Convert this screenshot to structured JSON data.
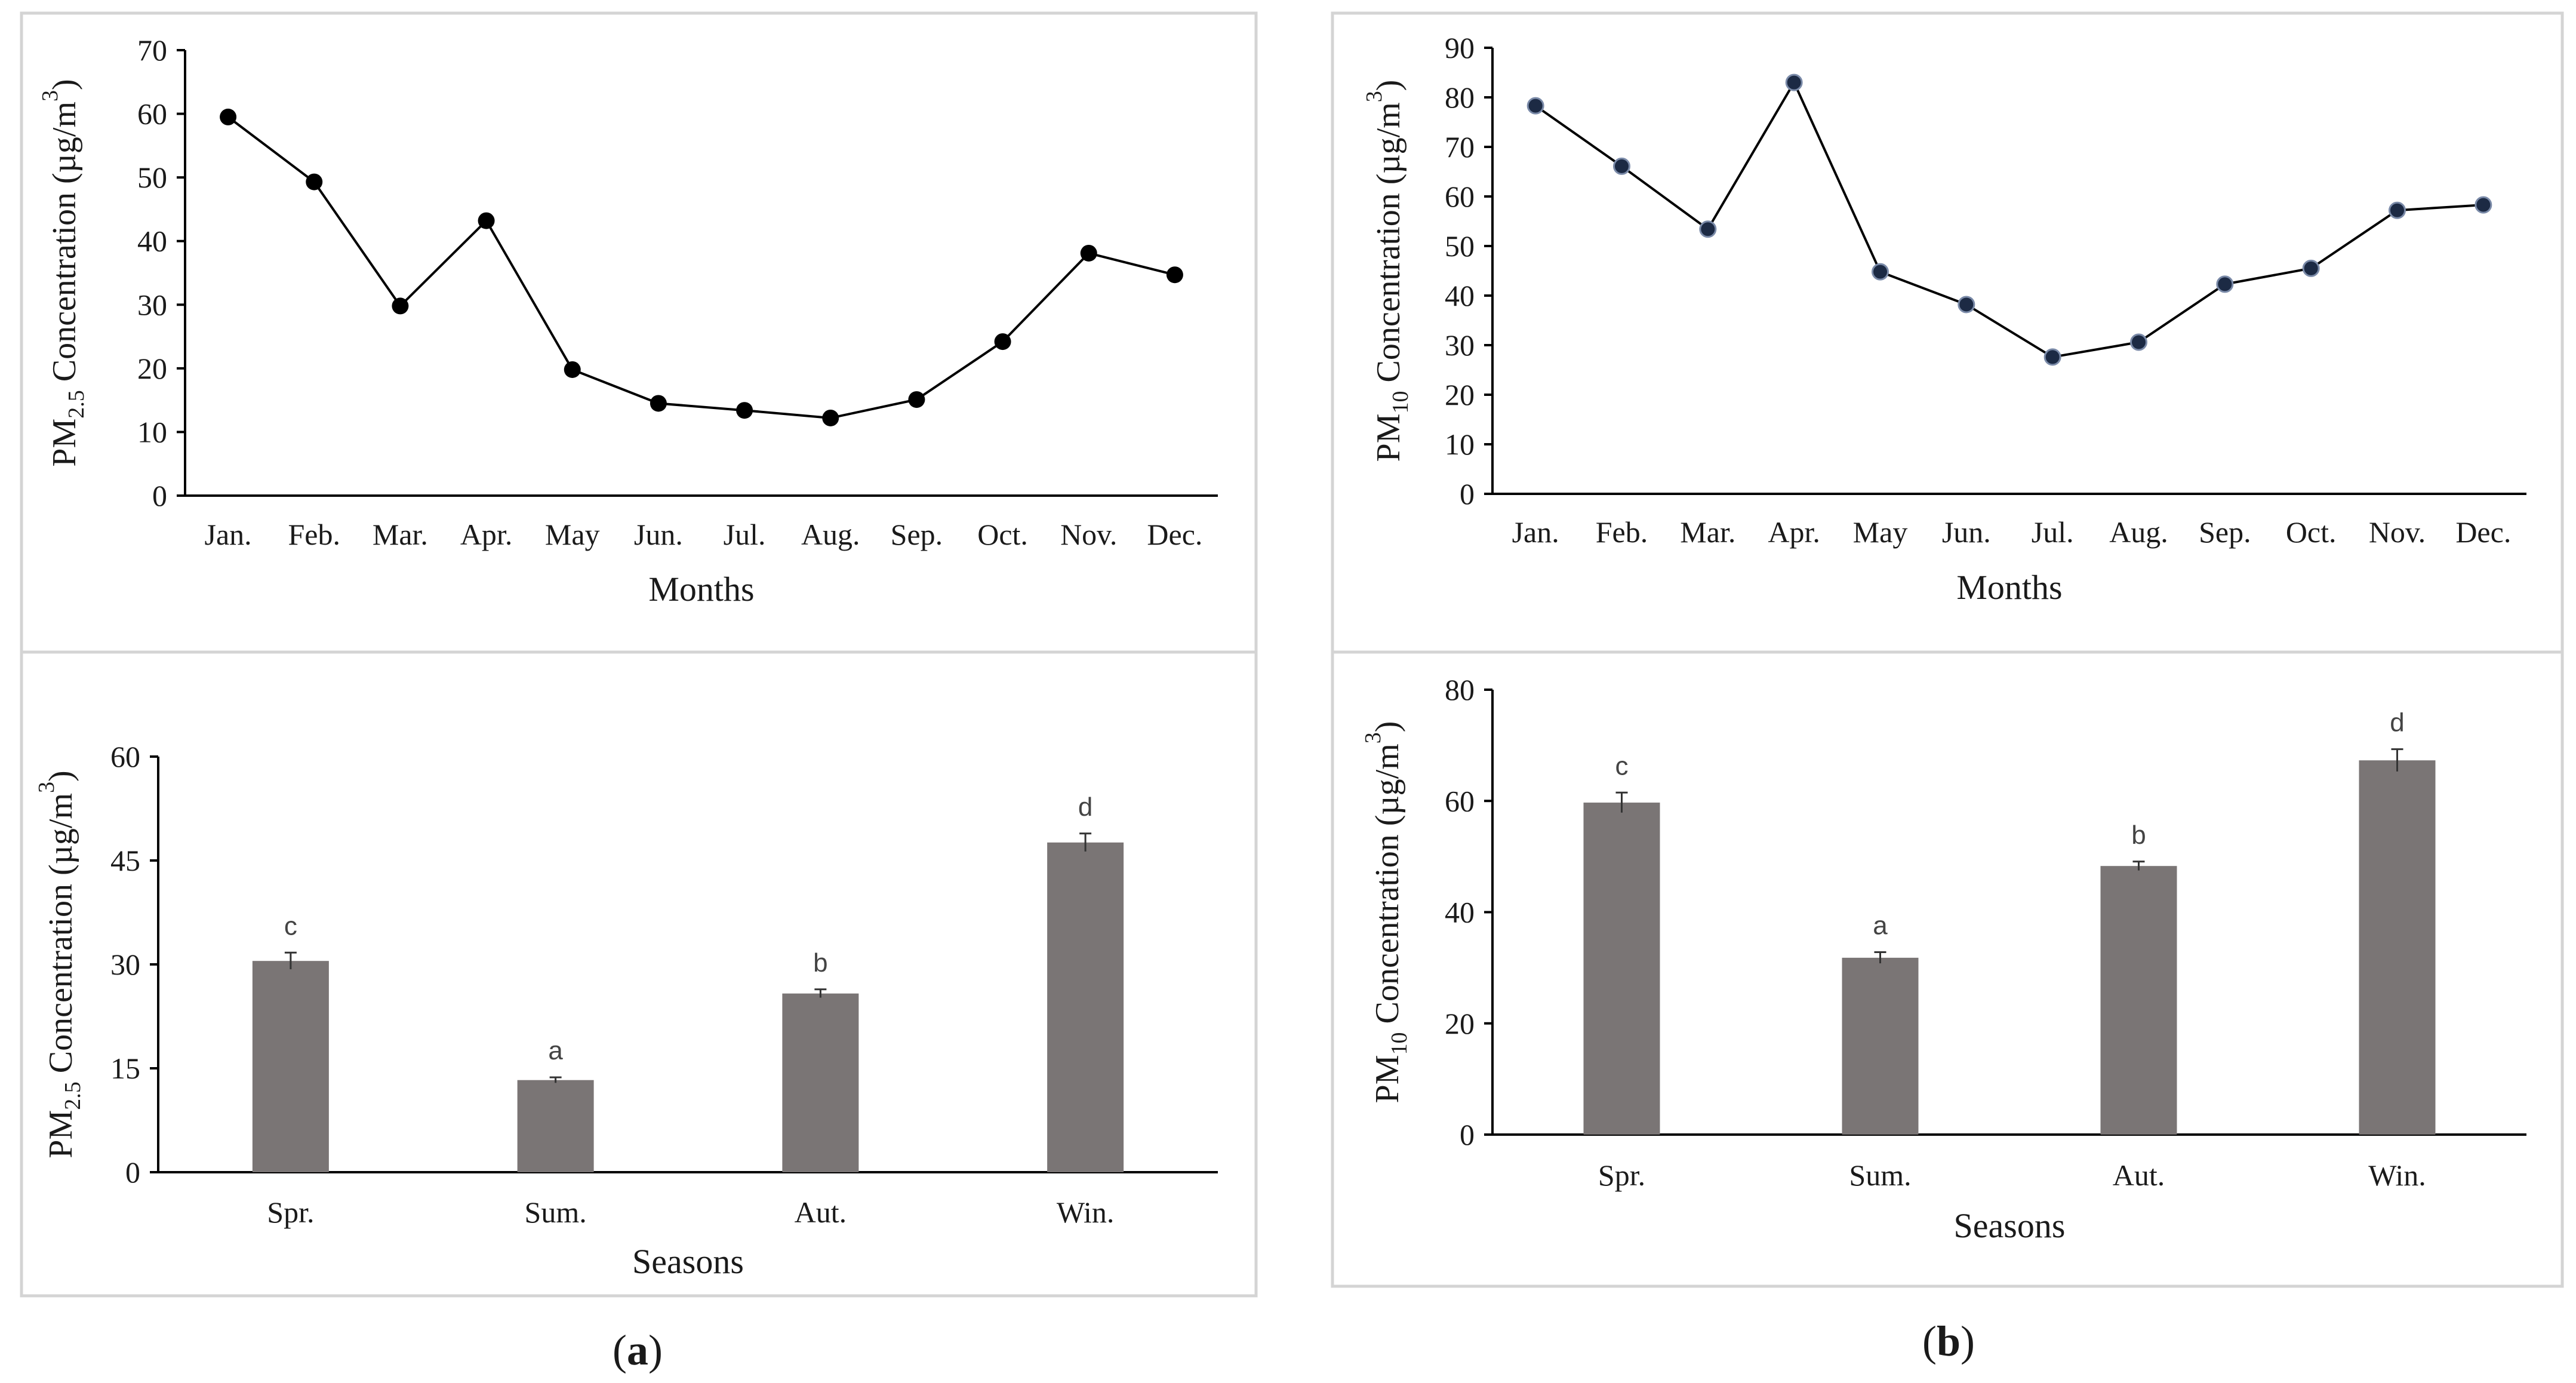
{
  "panel_labels": [
    {
      "open": "(",
      "letter": "a",
      "close": ")"
    },
    {
      "open": "(",
      "letter": "b",
      "close": ")"
    }
  ],
  "colors": {
    "line": "#000000",
    "marker_a": "#000000",
    "marker_b": "#1c2a44",
    "bar": "#7a7575",
    "frame": "#d4d4d4",
    "axis": "#000000"
  },
  "chart_data": [
    {
      "type": "line",
      "panel": "a",
      "title": "",
      "xlabel": "Months",
      "ylabel": {
        "prefix": "PM",
        "sub": "2.5",
        "mid": " Concentration (µg/m",
        "sup": "3",
        "suffix": ")"
      },
      "categories": [
        "Jan.",
        "Feb.",
        "Mar.",
        "Apr.",
        "May",
        "Jun.",
        "Jul.",
        "Aug.",
        "Sep.",
        "Oct.",
        "Nov.",
        "Dec."
      ],
      "values": [
        59.5,
        49.3,
        29.8,
        43.2,
        19.8,
        14.5,
        13.4,
        12.2,
        15.1,
        24.2,
        38.1,
        34.7
      ],
      "ylim": [
        0,
        70
      ],
      "yticks": [
        0,
        10,
        20,
        30,
        40,
        50,
        60,
        70
      ],
      "grid": false
    },
    {
      "type": "line",
      "panel": "b",
      "title": "",
      "xlabel": "Months",
      "ylabel": {
        "prefix": "PM",
        "sub": "10",
        "mid": " Concentration (µg/m",
        "sup": "3",
        "suffix": ")"
      },
      "categories": [
        "Jan.",
        "Feb.",
        "Mar.",
        "Apr.",
        "May",
        "Jun.",
        "Jul.",
        "Aug.",
        "Sep.",
        "Oct.",
        "Nov.",
        "Dec."
      ],
      "values": [
        78.3,
        66.1,
        53.4,
        83.0,
        44.8,
        38.2,
        27.6,
        30.6,
        42.3,
        45.5,
        57.2,
        58.3
      ],
      "ylim": [
        0,
        90
      ],
      "yticks": [
        0,
        10,
        20,
        30,
        40,
        50,
        60,
        70,
        80,
        90
      ],
      "grid": false
    },
    {
      "type": "bar",
      "panel": "a",
      "title": "",
      "xlabel": "Seasons",
      "ylabel": {
        "prefix": "PM",
        "sub": "2.5",
        "mid": " Concentration (µg/m",
        "sup": "3",
        "suffix": ")"
      },
      "categories": [
        "Spr.",
        "Sum.",
        "Aut.",
        "Win."
      ],
      "values": [
        30.5,
        13.3,
        25.8,
        47.6
      ],
      "errors": [
        1.2,
        0.4,
        0.6,
        1.3
      ],
      "significance": [
        "c",
        "a",
        "b",
        "d"
      ],
      "ylim": [
        0,
        60
      ],
      "yticks": [
        0,
        15,
        30,
        45,
        60
      ],
      "grid": false
    },
    {
      "type": "bar",
      "panel": "b",
      "title": "",
      "xlabel": "Seasons",
      "ylabel": {
        "prefix": "PM",
        "sub": "10",
        "mid": " Concentration (µg/m",
        "sup": "3",
        "suffix": ")"
      },
      "categories": [
        "Spr.",
        "Sum.",
        "Aut.",
        "Win."
      ],
      "values": [
        59.7,
        31.8,
        48.3,
        67.3
      ],
      "errors": [
        1.8,
        1.0,
        0.8,
        2.0
      ],
      "significance": [
        "c",
        "a",
        "b",
        "d"
      ],
      "ylim": [
        0,
        80
      ],
      "yticks": [
        0,
        20,
        40,
        60,
        80
      ],
      "grid": false
    }
  ]
}
